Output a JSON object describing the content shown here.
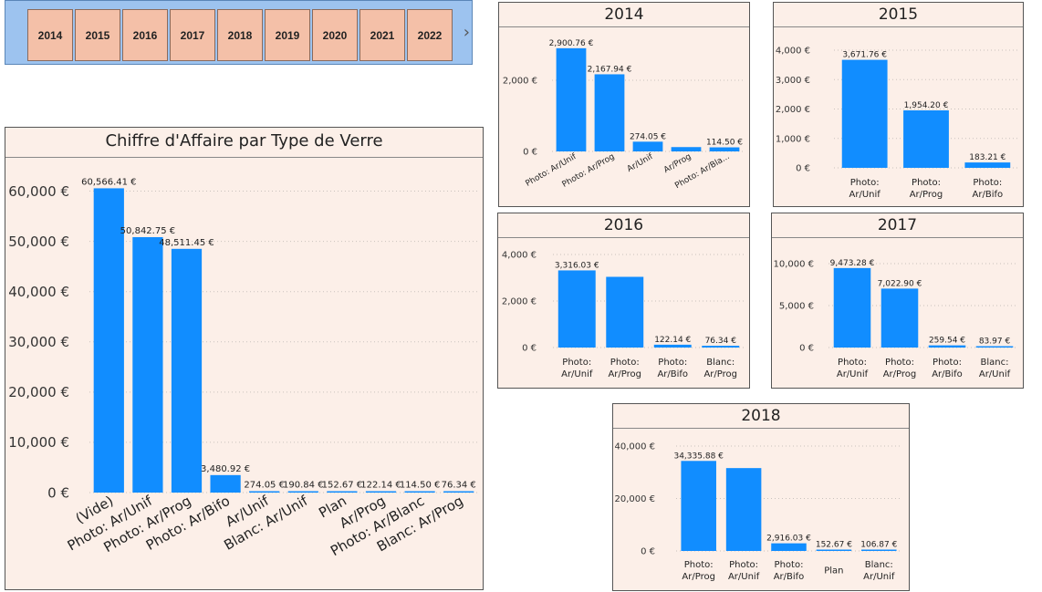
{
  "slicer": {
    "years": [
      "2014",
      "2015",
      "2016",
      "2017",
      "2018",
      "2019",
      "2020",
      "2021",
      "2022"
    ],
    "next_icon": "chevron-right-icon"
  },
  "main_chart": {
    "title": "Chiffre d'Affaire par Type de Verre"
  },
  "chart_data": [
    {
      "id": "main",
      "type": "bar",
      "title": "Chiffre d'Affaire par Type de Verre",
      "categories": [
        "(Vide)",
        "Photo: Ar/Unif",
        "Photo: Ar/Prog",
        "Photo: Ar/Bifo",
        "Ar/Unif",
        "Blanc: Ar/Unif",
        "Plan",
        "Ar/Prog",
        "Photo: Ar/Blanc",
        "Blanc: Ar/Prog"
      ],
      "values": [
        60566.41,
        50842.75,
        48511.45,
        3480.92,
        274.05,
        190.84,
        152.67,
        122.14,
        114.5,
        76.34
      ],
      "data_labels": [
        "60,566.41 €",
        "50,842.75 €",
        "48,511.45 €",
        "3,480.92 €",
        "274.05 €",
        "190.84 €",
        "152.67 €",
        "122.14 €",
        "114.50 €",
        "76.34 €"
      ],
      "yticks": [
        "0 €",
        "10,000 €",
        "20,000 €",
        "30,000 €",
        "40,000 €",
        "50,000 €",
        "60,000 €"
      ],
      "ylim": [
        0,
        65000
      ],
      "color": "#118dff"
    },
    {
      "id": "y2014",
      "type": "bar",
      "title": "2014",
      "categories": [
        "Photo: Ar/Unif",
        "Photo: Ar/Prog",
        "Ar/Unif",
        "Ar/Prog",
        "Photo: Ar/Bla..."
      ],
      "values": [
        2900.76,
        2167.94,
        274.05,
        122.14,
        114.5
      ],
      "data_labels": [
        "2,900.76 €",
        "2,167.94 €",
        "274.05 €",
        "",
        "114.50 €"
      ],
      "yticks": [
        "0 €",
        "2,000 €"
      ],
      "ylim": [
        0,
        3000
      ],
      "color": "#118dff"
    },
    {
      "id": "y2015",
      "type": "bar",
      "title": "2015",
      "categories": [
        "Photo: Ar/Unif",
        "Photo: Ar/Prog",
        "Photo: Ar/Bifo"
      ],
      "values": [
        3671.76,
        1954.2,
        183.21
      ],
      "data_labels": [
        "3,671.76 €",
        "1,954.20 €",
        "183.21 €"
      ],
      "yticks": [
        "0 €",
        "1,000 €",
        "2,000 €",
        "3,000 €",
        "4,000 €"
      ],
      "ylim": [
        0,
        4000
      ],
      "color": "#118dff"
    },
    {
      "id": "y2016",
      "type": "bar",
      "title": "2016",
      "categories": [
        "Photo: Ar/Unif",
        "Photo: Ar/Prog",
        "Photo: Ar/Bifo",
        "Blanc: Ar/Prog"
      ],
      "values": [
        3316.03,
        3040,
        122.14,
        76.34
      ],
      "data_labels": [
        "3,316.03 €",
        "",
        "122.14 €",
        "76.34 €"
      ],
      "yticks": [
        "0 €",
        "2,000 €",
        "4,000 €"
      ],
      "ylim": [
        0,
        4000
      ],
      "color": "#118dff"
    },
    {
      "id": "y2017",
      "type": "bar",
      "title": "2017",
      "categories": [
        "Photo: Ar/Unif",
        "Photo: Ar/Prog",
        "Photo: Ar/Bifo",
        "Blanc: Ar/Unif"
      ],
      "values": [
        9473.28,
        7022.9,
        259.54,
        83.97
      ],
      "data_labels": [
        "9,473.28 €",
        "7,022.90 €",
        "259.54 €",
        "83.97 €"
      ],
      "yticks": [
        "0 €",
        "5,000 €",
        "10,000 €"
      ],
      "ylim": [
        0,
        10000
      ],
      "color": "#118dff"
    },
    {
      "id": "y2018",
      "type": "bar",
      "title": "2018",
      "categories": [
        "Photo: Ar/Prog",
        "Photo: Ar/Unif",
        "Photo: Ar/Bifo",
        "Plan",
        "Blanc: Ar/Unif"
      ],
      "values": [
        34335.88,
        31600,
        2916.03,
        152.67,
        106.87
      ],
      "data_labels": [
        "34,335.88 €",
        "",
        "2,916.03 €",
        "152.67 €",
        "106.87 €"
      ],
      "yticks": [
        "0 €",
        "20,000 €",
        "40,000 €"
      ],
      "ylim": [
        0,
        40000
      ],
      "color": "#118dff"
    }
  ]
}
